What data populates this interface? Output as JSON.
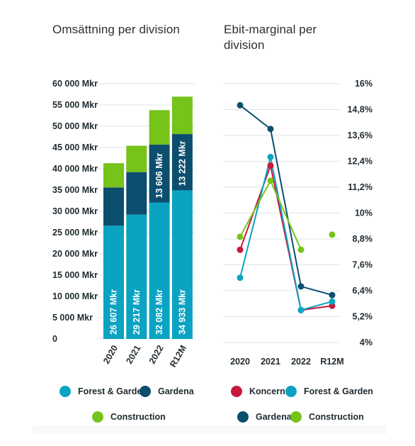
{
  "colors": {
    "forest_garden": "#0aa3c2",
    "gardena": "#0c4e6e",
    "construction": "#76c31a",
    "koncern": "#c8183d",
    "grid": "#dfe3e6",
    "text": "#1f2a30"
  },
  "chart_data": [
    {
      "type": "bar",
      "stacked": true,
      "title": "Omsättning per division",
      "categories": [
        "2020",
        "2021",
        "2022",
        "R12M"
      ],
      "series": [
        {
          "name": "Forest & Garden",
          "color_key": "forest_garden",
          "values": [
            26607,
            29217,
            32082,
            34933
          ],
          "labels": [
            "26 607 Mkr",
            "29 217 Mkr",
            "32 082 Mkr",
            "34 933 Mkr"
          ]
        },
        {
          "name": "Gardena",
          "color_key": "gardena",
          "values": [
            9000,
            10000,
            13606,
            13222
          ],
          "labels": [
            "",
            "",
            "13 606 Mkr",
            "13 222 Mkr"
          ]
        },
        {
          "name": "Construction",
          "color_key": "construction",
          "values": [
            5700,
            6200,
            8100,
            8800
          ],
          "labels": [
            "",
            "",
            "",
            ""
          ]
        }
      ],
      "y_ticks": [
        "0",
        "5 000 Mkr",
        "10 000 Mkr",
        "15 000 Mkr",
        "20 000 Mkr",
        "25 000 Mkr",
        "30 000 Mkr",
        "35 000 Mkr",
        "40 000 Mkr",
        "45 000 Mkr",
        "50 000 Mkr",
        "55 000 Mkr",
        "60 000 Mkr"
      ],
      "ylim": [
        0,
        60000
      ],
      "grid": true,
      "legend": "bottom"
    },
    {
      "type": "line",
      "title": "Ebit-marginal per division",
      "categories": [
        "2020",
        "2021",
        "2022",
        "R12M"
      ],
      "series": [
        {
          "name": "Koncern",
          "color_key": "koncern",
          "values": [
            8.3,
            12.2,
            5.5,
            5.7
          ]
        },
        {
          "name": "Forest & Garden",
          "color_key": "forest_garden",
          "values": [
            7.0,
            12.6,
            5.5,
            5.9
          ]
        },
        {
          "name": "Gardena",
          "color_key": "gardena",
          "values": [
            15.0,
            13.9,
            6.6,
            6.2
          ]
        },
        {
          "name": "Construction",
          "color_key": "construction",
          "values": [
            8.9,
            11.5,
            8.3,
            9.0
          ]
        }
      ],
      "construction_gap_after_index": 2,
      "y_ticks": [
        "4%",
        "5,2%",
        "6,4%",
        "7,6%",
        "8,8%",
        "10%",
        "11,2%",
        "12,4%",
        "13,6%",
        "14,8%",
        "16%"
      ],
      "ylim": [
        4,
        16
      ],
      "grid": true,
      "legend": "bottom"
    }
  ],
  "legend_left": [
    "Forest & Garden",
    "Gardena",
    "Construction"
  ],
  "legend_right": [
    "Koncern",
    "Forest & Garden",
    "Gardena",
    "Construction"
  ]
}
